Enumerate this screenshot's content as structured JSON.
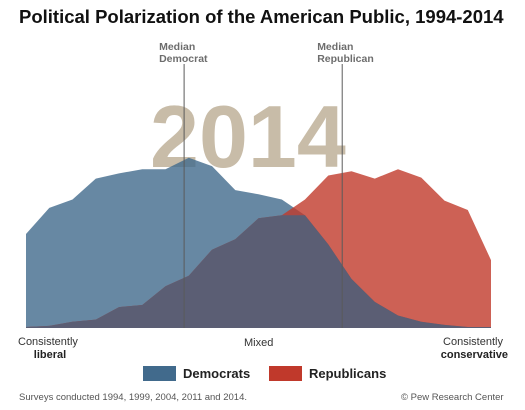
{
  "title": "Political Polarization of the American Public, 1994-2014",
  "year_label": "2014",
  "x_axis": {
    "left_line1": "Consistently",
    "left_line2": "liberal",
    "center": "Mixed",
    "right_line1": "Consistently",
    "right_line2": "conservative"
  },
  "legend": [
    {
      "name": "Democrats",
      "color": "#416a8c"
    },
    {
      "name": "Republicans",
      "color": "#c0392b"
    }
  ],
  "footer": {
    "note": "Surveys conducted 1994, 1999, 2004, 2011 and 2014.",
    "source": "© Pew Research Center"
  },
  "chart_data": {
    "type": "area",
    "title": "Political Polarization of the American Public, 1994-2014",
    "x": [
      0,
      1,
      2,
      3,
      4,
      5,
      6,
      7,
      8,
      9,
      10,
      11,
      12,
      13,
      14,
      15,
      16,
      17,
      18,
      19,
      20
    ],
    "x_range": [
      0,
      20
    ],
    "x_tick_labels": {
      "0": "Consistently liberal",
      "10": "Mixed",
      "20": "Consistently conservative"
    },
    "y_range": [
      0,
      180
    ],
    "grid": false,
    "legend_position": "bottom",
    "series": [
      {
        "name": "Democrats",
        "color": "#416a8c",
        "values": [
          90,
          115,
          123,
          143,
          148,
          152,
          152,
          163,
          155,
          132,
          128,
          123,
          108,
          80,
          47,
          25,
          12,
          6,
          3,
          1,
          1
        ]
      },
      {
        "name": "Republicans",
        "color": "#c0392b",
        "values": [
          1,
          2,
          6,
          8,
          20,
          22,
          40,
          50,
          75,
          85,
          105,
          108,
          123,
          146,
          150,
          143,
          152,
          144,
          122,
          113,
          65
        ]
      }
    ],
    "annotations": [
      {
        "text": "Median Democrat",
        "x": 6.8
      },
      {
        "text": "Median Republican",
        "x": 13.6
      }
    ]
  }
}
